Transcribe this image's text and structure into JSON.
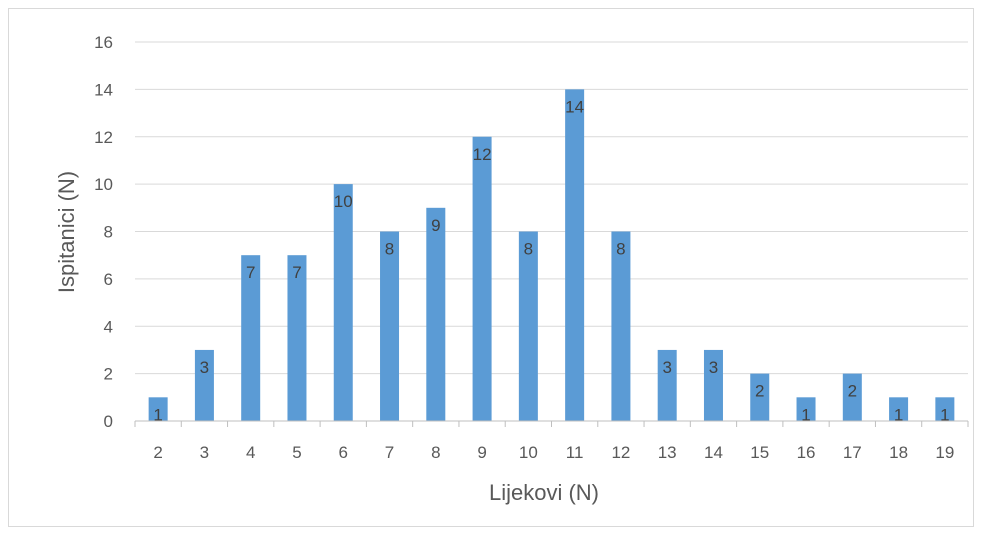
{
  "chart_data": {
    "type": "bar",
    "categories": [
      "2",
      "3",
      "4",
      "5",
      "6",
      "7",
      "8",
      "9",
      "10",
      "11",
      "12",
      "13",
      "14",
      "15",
      "16",
      "17",
      "18",
      "19"
    ],
    "values": [
      1,
      3,
      7,
      7,
      10,
      8,
      9,
      12,
      8,
      14,
      8,
      3,
      3,
      2,
      1,
      2,
      1,
      1
    ],
    "xlabel": "Lijekovi (N)",
    "ylabel": "Ispitanici (N)",
    "ylim": [
      0,
      16
    ],
    "yticks": [
      0,
      2,
      4,
      6,
      8,
      10,
      12,
      14,
      16
    ],
    "grid": true,
    "data_labels": true,
    "colors": {
      "bar": "#5b9bd5",
      "grid": "#d9d9d9",
      "axis": "#bfbfbf",
      "text": "#595959"
    }
  }
}
